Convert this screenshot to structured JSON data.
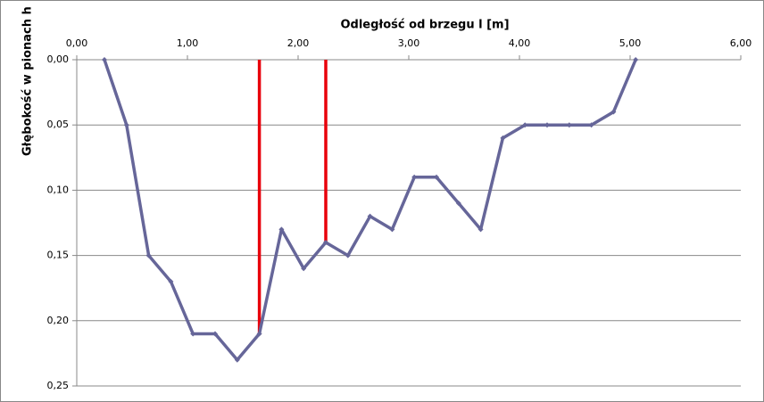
{
  "chart_data": {
    "type": "line",
    "title": "Odległość od brzegu l [m]",
    "y_label": "Głębokość w pionach h",
    "x": [
      0.25,
      0.45,
      0.65,
      0.85,
      1.05,
      1.25,
      1.45,
      1.65,
      1.85,
      2.05,
      2.25,
      2.45,
      2.65,
      2.85,
      3.05,
      3.25,
      3.45,
      3.65,
      3.85,
      4.05,
      4.25,
      4.45,
      4.65,
      4.85,
      5.05
    ],
    "values": [
      0,
      0.05,
      0.15,
      0.17,
      0.21,
      0.21,
      0.23,
      0.21,
      0.13,
      0.16,
      0.14,
      0.15,
      0.12,
      0.13,
      0.09,
      0.09,
      0.11,
      0.13,
      0.06,
      0.05,
      0.05,
      0.05,
      0.05,
      0.04,
      0
    ],
    "color": "#666699",
    "verticals": {
      "color": "#e8000b",
      "x": [
        1.65,
        2.25
      ],
      "depths": [
        0.21,
        0.14
      ]
    },
    "xlim": [
      0,
      6
    ],
    "xticks": [
      {
        "value": 0,
        "label": "0,00"
      },
      {
        "value": 1,
        "label": "1,00"
      },
      {
        "value": 2,
        "label": "2,00"
      },
      {
        "value": 3,
        "label": "3,00"
      },
      {
        "value": 4,
        "label": "4,00"
      },
      {
        "value": 5,
        "label": "5,00"
      },
      {
        "value": 6,
        "label": "6,00"
      }
    ],
    "ylim": [
      0,
      0.25
    ],
    "y_inverted": true,
    "yticks": [
      {
        "value": 0,
        "label": "0,00"
      },
      {
        "value": 0.05,
        "label": "0,05"
      },
      {
        "value": 0.1,
        "label": "0,10"
      },
      {
        "value": 0.15,
        "label": "0,15"
      },
      {
        "value": 0.2,
        "label": "0,20"
      },
      {
        "value": 0.25,
        "label": "0,25"
      }
    ],
    "grid": true
  }
}
